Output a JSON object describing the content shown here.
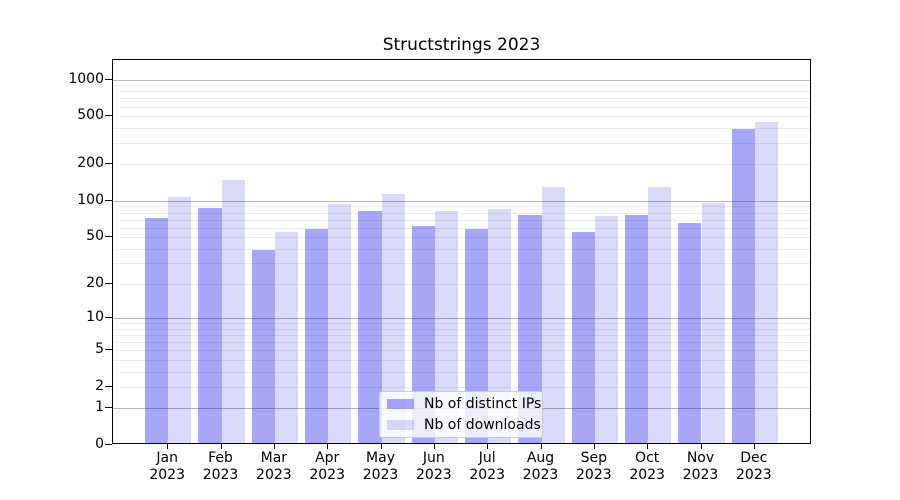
{
  "title": "Structstrings 2023",
  "chart_data": {
    "type": "bar",
    "title": "Structstrings 2023",
    "categories": [
      "Jan 2023",
      "Feb 2023",
      "Mar 2023",
      "Apr 2023",
      "May 2023",
      "Jun 2023",
      "Jul 2023",
      "Aug 2023",
      "Sep 2023",
      "Oct 2023",
      "Nov 2023",
      "Dec 2023"
    ],
    "series": [
      {
        "key": "distinct-ips",
        "name": "Nb of distinct IPs",
        "hex": "#a9a9f6",
        "fill": "rgba(0,0,238,0.345)",
        "values": [
          72,
          87,
          39,
          58,
          83,
          62,
          58,
          77,
          55,
          77,
          65,
          395
        ]
      },
      {
        "key": "downloads",
        "name": "Nb of downloads",
        "hex": "#dcdcf8",
        "fill": "rgba(0,0,238,0.145)",
        "values": [
          108,
          150,
          55,
          95,
          115,
          83,
          85,
          130,
          75,
          130,
          96,
          450
        ]
      }
    ],
    "xlabel": "",
    "ylabel": "",
    "yscale": "log1p",
    "ylim": [
      0,
      1430
    ],
    "yticks": [
      0,
      1,
      2,
      5,
      10,
      20,
      50,
      100,
      200,
      500,
      1000
    ],
    "major_gridlines": [
      1,
      10,
      100,
      1000
    ],
    "minor_gridlines": [
      2,
      3,
      4,
      5,
      6,
      7,
      8,
      9,
      20,
      30,
      40,
      50,
      60,
      70,
      80,
      90,
      200,
      300,
      400,
      500,
      600,
      700,
      800,
      900
    ],
    "grid": true,
    "legend_position": "lower center",
    "colors": {
      "major_grid": "#b6b6b6",
      "minor_grid": "#ececec",
      "axis": "#000000",
      "background": "#ffffff"
    }
  }
}
